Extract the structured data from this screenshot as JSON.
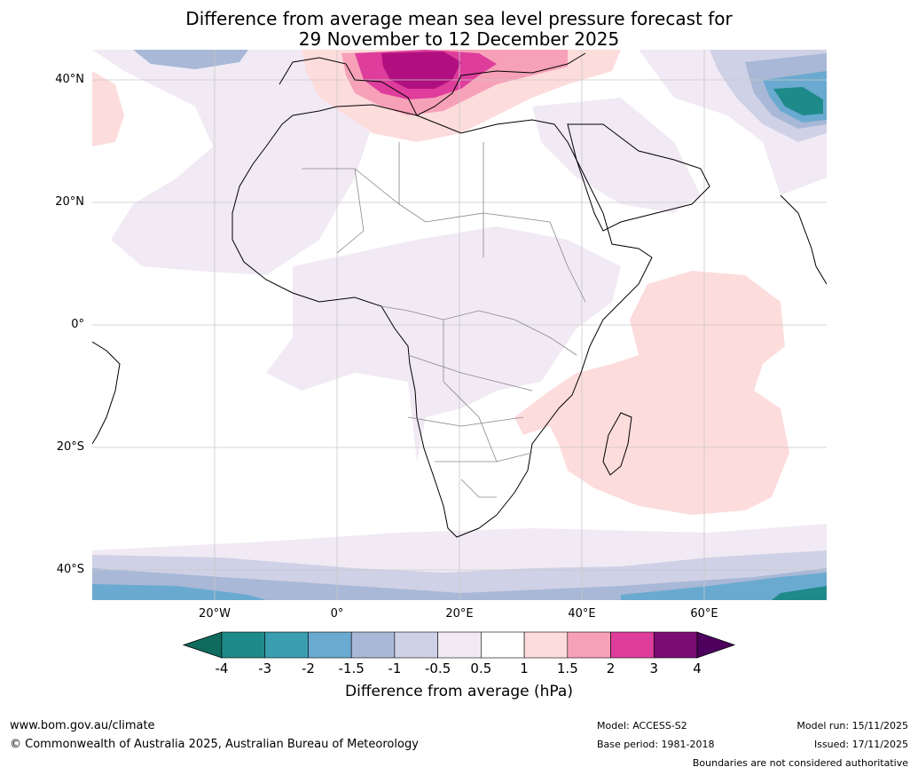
{
  "title_line1": "Difference from average mean sea level pressure forecast for",
  "title_line2": "29 November to 12 December 2025",
  "lat_labels": [
    "40°N",
    "20°N",
    "0°",
    "20°S",
    "40°S"
  ],
  "lon_labels": [
    "20°W",
    "0°",
    "20°E",
    "40°E",
    "60°E"
  ],
  "colorbar": {
    "ticks": [
      "-4",
      "-3",
      "-2",
      "-1.5",
      "-1",
      "-0.5",
      "0.5",
      "1",
      "1.5",
      "2",
      "3",
      "4"
    ],
    "colors": [
      "#1f8a8a",
      "#3a9db0",
      "#6aaad0",
      "#a8b8d6",
      "#cfd1e6",
      "#f1eaf4",
      "#ffffff",
      "#fddcdc",
      "#f7a1b8",
      "#de3d9c",
      "#b0107f",
      "#7a0c73"
    ],
    "end_low": "#0f6b5e",
    "end_high": "#4d005e",
    "label": "Difference from average (hPa)"
  },
  "footer": {
    "url": "www.bom.gov.au/climate",
    "copyright": "© Commonwealth of Australia 2025, Australian Bureau of Meteorology",
    "model": "Model: ACCESS-S2",
    "base_period": "Base period: 1981-2018",
    "model_run": "Model run: 15/11/2025",
    "issued": "Issued: 17/11/2025",
    "disclaimer": "Boundaries are not considered authoritative"
  }
}
